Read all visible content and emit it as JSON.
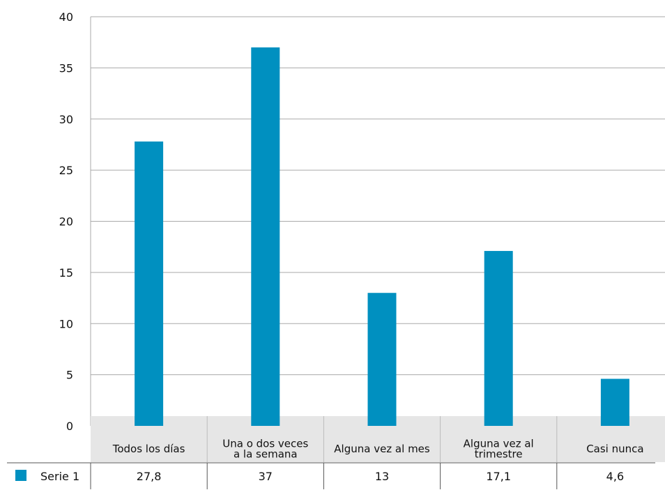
{
  "chart_data": {
    "type": "bar",
    "categories": [
      [
        "Todos los días"
      ],
      [
        "Una o dos veces",
        "a la semana"
      ],
      [
        "Alguna vez al mes"
      ],
      [
        "Alguna vez  al",
        "trimestre"
      ],
      [
        "Casi nunca"
      ]
    ],
    "series": [
      {
        "name": "Serie 1",
        "values": [
          27.8,
          37,
          13,
          17.1,
          4.6
        ]
      }
    ],
    "value_labels": [
      "27,8",
      "37",
      "13",
      "17,1",
      "4,6"
    ],
    "yticks": [
      0,
      5,
      10,
      15,
      20,
      25,
      30,
      35,
      40
    ],
    "ylim": [
      0,
      40
    ],
    "grid": true,
    "legend": "data-table-bottom-left",
    "colors": {
      "bar": "#0090c0",
      "grid": "#aaaaaa",
      "category_band": "#e6e6e6"
    }
  }
}
